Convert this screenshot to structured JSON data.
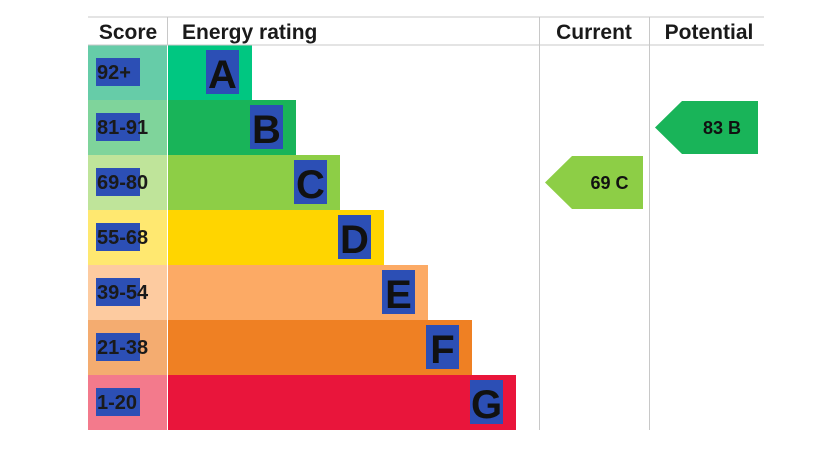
{
  "chart_data": {
    "type": "bar",
    "title": "",
    "columns": {
      "score": "Score",
      "rating": "Energy rating",
      "current": "Current",
      "potential": "Potential"
    },
    "bands": [
      {
        "letter": "A",
        "range": "92+",
        "color": "#00c781",
        "score_color": "#66cca8"
      },
      {
        "letter": "B",
        "range": "81-91",
        "color": "#19b459",
        "score_color": "#7fd49b"
      },
      {
        "letter": "C",
        "range": "69-80",
        "color": "#8dce46",
        "score_color": "#bfe49a"
      },
      {
        "letter": "D",
        "range": "55-68",
        "color": "#ffd500",
        "score_color": "#ffe870"
      },
      {
        "letter": "E",
        "range": "39-54",
        "color": "#fcaa65",
        "score_color": "#fdcba0"
      },
      {
        "letter": "F",
        "range": "21-38",
        "color": "#ef8023",
        "score_color": "#f4ac70"
      },
      {
        "letter": "G",
        "range": "1-20",
        "color": "#e9153b",
        "score_color": "#f37a8c"
      }
    ],
    "current": {
      "value": 69,
      "band": "C",
      "label": "69  C",
      "color": "#8dce46"
    },
    "potential": {
      "value": 83,
      "band": "B",
      "label": "83  B",
      "color": "#19b459"
    },
    "highlight_color": "#2c4fb5"
  }
}
